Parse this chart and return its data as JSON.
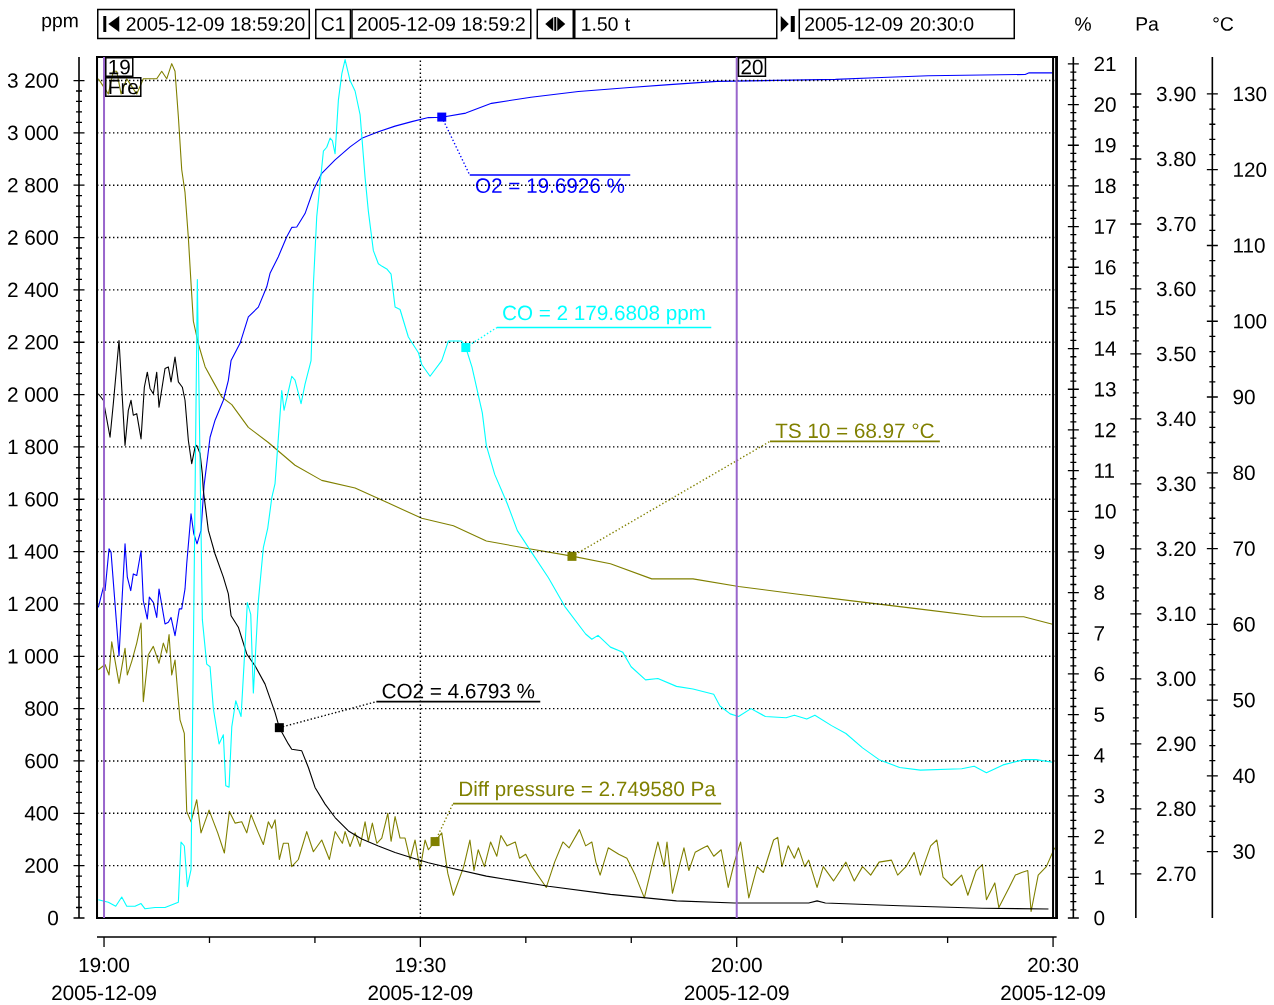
{
  "chart_data": [
    {
      "type": "line",
      "ylabel": "ppm",
      "xlim": [
        18.9889,
        20.5056
      ],
      "xticks": [
        {
          "value": 19,
          "label": "19:00"
        },
        {
          "value": 19.5,
          "label": "19:30"
        },
        {
          "value": 20,
          "label": "20:00"
        },
        {
          "value": 20.5,
          "label": "20:30"
        }
      ],
      "ylim": [
        0,
        3290
      ],
      "yticks": [
        0,
        200,
        400,
        600,
        800,
        {
          "value": 1000,
          "label": "1 000"
        },
        {
          "value": 1200,
          "label": "1 200"
        },
        {
          "value": 1400,
          "label": "1 400"
        },
        {
          "value": 1600,
          "label": "1 600"
        },
        {
          "value": 1800,
          "label": "1 800"
        },
        {
          "value": 2000,
          "label": "2 000"
        },
        {
          "value": 2200,
          "label": "2 200"
        },
        {
          "value": 2400,
          "label": "2 400"
        },
        {
          "value": 2600,
          "label": "2 600"
        },
        {
          "value": 2800,
          "label": "2 800"
        },
        {
          "value": 3000,
          "label": "3 000"
        },
        {
          "value": 3200,
          "label": "3 200"
        }
      ],
      "grid": true,
      "ref_lines": [
        {
          "axis": "x",
          "value": 19,
          "label": "19",
          "color": "#9966cc"
        },
        {
          "axis": "x",
          "value": 20,
          "label": "20",
          "color": "#9966cc"
        },
        {
          "axis": "x",
          "value": 20.5,
          "color": "#000000"
        }
      ],
      "annotations": [
        "2005-12-09 18:59:20",
        "C1",
        "2005-12-09 18:59:2",
        "1.50 t",
        "2005-12-09 20:30:0",
        "2005-12-09",
        "2005-12-09",
        "2005-12-09",
        "2005-12-09",
        "Fre",
        {
          "text": "CO = 2 179.6808 ppm",
          "x": 19.5718,
          "y": 2179.6808
        }
      ],
      "series": [
        {
          "color": "#00ffff",
          "x": [
            18.991,
            18.9989,
            19.0068,
            19.0185,
            19.028,
            19.0359,
            19.049,
            19.0585,
            19.0648,
            19.0806,
            19.0964,
            19.1175,
            19.1217,
            19.1269,
            19.1317,
            19.1375,
            19.1475,
            19.1554,
            19.1623,
            19.1676,
            19.1728,
            19.1818,
            19.1886,
            19.1924,
            19.1976,
            19.2019,
            19.2082,
            19.2166,
            19.2213,
            19.2265,
            19.2319,
            19.236,
            19.2439,
            19.2518,
            19.2588,
            19.2651,
            19.2703,
            19.2809,
            19.2845,
            19.2967,
            19.3019,
            19.3114,
            19.3177,
            19.3272,
            19.3309,
            19.3362,
            19.3467,
            19.352,
            19.3573,
            19.3609,
            19.3652,
            19.3704,
            19.3758,
            19.381,
            19.3889,
            19.3968,
            19.4047,
            19.4126,
            19.4178,
            19.4257,
            19.4336,
            19.4395,
            19.4469,
            19.4537,
            19.46,
            19.4679,
            19.481,
            19.4969,
            19.5022,
            19.5153,
            19.5338,
            19.5443,
            19.5549,
            19.5651,
            19.5718,
            19.5816,
            19.5979,
            19.6043,
            19.6175,
            19.6371,
            19.6533,
            19.6763,
            19.7024,
            19.7284,
            19.7612,
            19.771,
            19.7808,
            19.8004,
            19.82,
            19.8331,
            19.8559,
            19.8754,
            19.9048,
            19.9309,
            19.9636,
            19.9735,
            19.9897,
            20.0029,
            20.0225,
            20.0452,
            20.078,
            20.0911,
            20.1107,
            20.1236,
            20.1499,
            20.1726,
            20.1989,
            20.225,
            20.2575,
            20.2903,
            20.3556,
            20.3753,
            20.3947,
            20.421,
            20.4536,
            20.4731,
            20.4992
          ],
          "values": [
            70,
            65,
            60,
            45,
            80,
            45,
            45,
            55,
            35,
            40,
            40,
            60,
            290,
            275,
            120,
            185,
            2440,
            1140,
            970,
            960,
            800,
            665,
            700,
            505,
            500,
            730,
            830,
            770,
            970,
            1205,
            1160,
            860,
            1210,
            1415,
            1490,
            1605,
            1660,
            2015,
            1940,
            2070,
            2055,
            1965,
            2040,
            2130,
            2420,
            2680,
            2930,
            2945,
            2980,
            2970,
            2920,
            3125,
            3225,
            3280,
            3200,
            3160,
            3070,
            2830,
            2700,
            2550,
            2500,
            2490,
            2480,
            2460,
            2335,
            2325,
            2220,
            2160,
            2115,
            2070,
            2130,
            2205,
            2205,
            2205,
            2180,
            2105,
            1930,
            1805,
            1695,
            1585,
            1480,
            1395,
            1300,
            1190,
            1085,
            1065,
            1080,
            1035,
            1015,
            960,
            910,
            915,
            885,
            875,
            855,
            810,
            780,
            770,
            800,
            770,
            765,
            775,
            760,
            775,
            735,
            705,
            650,
            605,
            575,
            565,
            570,
            580,
            555,
            585,
            605,
            605,
            595
          ]
        }
      ]
    },
    {
      "type": "line",
      "ylabel": "%",
      "xlim": [
        18.9889,
        20.5056
      ],
      "ylim": [
        0,
        21.17
      ],
      "yticks": [
        0,
        1,
        2,
        3,
        4,
        5,
        6,
        7,
        8,
        9,
        10,
        11,
        12,
        13,
        14,
        15,
        16,
        17,
        18,
        19,
        20,
        21
      ],
      "tick_labels": "y",
      "annotations": [
        {
          "text": "O2 = 19.6926 %",
          "x": 19.5338,
          "y": 19.6926
        },
        {
          "text": "CO2 = 4.6793 %",
          "x": 19.2771,
          "y": 4.6793
        }
      ],
      "series": [
        {
          "color": "#0000ff",
          "x": [
            18.991,
            18.9989,
            19.0016,
            19.0079,
            19.0111,
            19.0237,
            19.0332,
            19.0368,
            19.0422,
            19.0463,
            19.0517,
            19.0585,
            19.0621,
            19.0684,
            19.0716,
            19.0779,
            19.0833,
            19.0869,
            19.0964,
            19.1016,
            19.1059,
            19.1122,
            19.119,
            19.1228,
            19.128,
            19.1307,
            19.1375,
            19.1418,
            19.147,
            19.1533,
            19.1581,
            19.1676,
            19.1755,
            19.1886,
            19.1965,
            19.2008,
            19.215,
            19.2281,
            19.2439,
            19.2572,
            19.2624,
            19.2755,
            19.2888,
            19.2967,
            19.3046,
            19.3177,
            19.3309,
            19.3441,
            19.3652,
            19.3889,
            19.4074,
            19.4336,
            19.46,
            19.4864,
            19.5127,
            19.5338,
            19.5718,
            19.6124,
            19.6748,
            19.7498,
            19.831,
            19.8935,
            19.9686,
            20.156,
            20.2185,
            20.3027,
            20.4559,
            20.4622,
            20.4996
          ],
          "values": [
            7.64,
            8.13,
            8.05,
            9.08,
            8.99,
            6.45,
            9.2,
            8.38,
            8.05,
            8.46,
            8.42,
            9.03,
            7.8,
            7.35,
            7.89,
            7.76,
            7.39,
            8.09,
            7.23,
            7.27,
            7.39,
            6.94,
            7.6,
            7.6,
            8.09,
            8.71,
            9.94,
            9.45,
            9.2,
            9.53,
            10.63,
            11.82,
            12.24,
            12.73,
            13.22,
            13.71,
            14.13,
            14.78,
            15.02,
            15.52,
            15.85,
            16.26,
            16.75,
            16.98,
            16.99,
            17.32,
            17.9,
            18.31,
            18.64,
            18.96,
            19.17,
            19.33,
            19.47,
            19.58,
            19.68,
            19.69,
            19.79,
            20.03,
            20.18,
            20.32,
            20.42,
            20.49,
            20.57,
            20.62,
            20.66,
            20.71,
            20.74,
            20.78,
            20.78
          ]
        },
        {
          "color": "#000000",
          "x": [
            18.991,
            18.9989,
            19.0095,
            19.0147,
            19.0237,
            19.0332,
            19.0384,
            19.0427,
            19.0463,
            19.0517,
            19.0585,
            19.0637,
            19.0684,
            19.0727,
            19.0779,
            19.0833,
            19.0869,
            19.0964,
            19.1016,
            19.1059,
            19.1122,
            19.1175,
            19.1238,
            19.128,
            19.1333,
            19.1386,
            19.1439,
            19.1465,
            19.1518,
            19.1554,
            19.157,
            19.1649,
            19.1755,
            19.1886,
            19.1965,
            19.2008,
            19.2123,
            19.2256,
            19.2387,
            19.2545,
            19.2703,
            19.2771,
            19.2913,
            19.2967,
            19.3125,
            19.323,
            19.3335,
            19.3494,
            19.3652,
            19.3862,
            19.4074,
            19.4336,
            19.46,
            19.4864,
            19.5127,
            19.5391,
            19.6043,
            19.7024,
            19.8004,
            19.9048,
            19.9964,
            20.1138,
            20.127,
            20.1401,
            20.2575,
            20.3883,
            20.4927
          ],
          "values": [
            12.89,
            12.73,
            11.82,
            12.65,
            14.2,
            11.62,
            12.48,
            12.73,
            12.36,
            12.4,
            11.78,
            13.05,
            13.42,
            13.02,
            12.89,
            13.42,
            12.56,
            13.51,
            13.55,
            13.18,
            13.79,
            13.18,
            13.05,
            12.73,
            11.74,
            11.17,
            11.58,
            11.62,
            11.42,
            10.92,
            10.51,
            9.53,
            8.95,
            8.38,
            7.97,
            7.43,
            7.15,
            6.49,
            6.2,
            5.75,
            5.05,
            4.68,
            4.28,
            4.15,
            4.11,
            3.7,
            3.21,
            2.8,
            2.47,
            2.14,
            1.94,
            1.77,
            1.61,
            1.48,
            1.36,
            1.26,
            1.03,
            0.78,
            0.58,
            0.42,
            0.37,
            0.37,
            0.42,
            0.37,
            0.3,
            0.24,
            0.22
          ]
        }
      ]
    },
    {
      "type": "line",
      "ylabel": "Pa",
      "xlim": [
        18.9889,
        20.5056
      ],
      "ylim": [
        2.632,
        3.957
      ],
      "yticks": [
        {
          "value": 2.7,
          "label": "2.70"
        },
        {
          "value": 2.8,
          "label": "2.80"
        },
        {
          "value": 2.9,
          "label": "2.90"
        },
        {
          "value": 3.0,
          "label": "3.00"
        },
        {
          "value": 3.1,
          "label": "3.10"
        },
        {
          "value": 3.2,
          "label": "3.20"
        },
        {
          "value": 3.3,
          "label": "3.30"
        },
        {
          "value": 3.4,
          "label": "3.40"
        },
        {
          "value": 3.5,
          "label": "3.50"
        },
        {
          "value": 3.6,
          "label": "3.60"
        },
        {
          "value": 3.7,
          "label": "3.70"
        },
        {
          "value": 3.8,
          "label": "3.80"
        },
        {
          "value": 3.9,
          "label": "3.90"
        }
      ],
      "tick_labels": "y",
      "annotations": [
        {
          "text": "Diff pressure = 2.749580 Pa",
          "x": 19.5232,
          "y": 2.74958
        }
      ],
      "series": [
        {
          "color": "#808000",
          "x": [
            18.991,
            19.0016,
            19.0079,
            19.0122,
            19.0237,
            19.0332,
            19.0368,
            19.0438,
            19.0517,
            19.0585,
            19.0621,
            19.07,
            19.0779,
            19.0869,
            19.0937,
            19.0991,
            19.1028,
            19.107,
            19.1122,
            19.1201,
            19.1269,
            19.1307,
            19.1375,
            19.1465,
            19.1533,
            19.166,
            19.1797,
            19.1902,
            19.1981,
            19.2071,
            19.2177,
            19.2256,
            19.2324,
            19.2439,
            19.2518,
            19.2597,
            19.2651,
            19.2703,
            19.2771,
            19.2834,
            19.2913,
            19.2967,
            19.3071,
            19.3204,
            19.3309,
            19.3441,
            19.3562,
            19.3652,
            19.3767,
            19.381,
            19.3889,
            19.3968,
            19.4047,
            19.4126,
            19.4178,
            19.4241,
            19.4311,
            19.439,
            19.4485,
            19.4537,
            19.46,
            19.4679,
            19.4758,
            19.4837,
            19.4916,
            19.4995,
            19.5074,
            19.5127,
            19.5232,
            19.5338,
            19.5433,
            19.5522,
            19.5685,
            19.5783,
            19.5847,
            19.5914,
            19.6012,
            19.611,
            19.6208,
            19.6273,
            19.6371,
            19.65,
            19.6567,
            19.6665,
            19.6763,
            19.699,
            19.7122,
            19.7253,
            19.7351,
            19.7514,
            19.7612,
            19.771,
            19.7774,
            19.7841,
            19.797,
            19.8135,
            19.8264,
            19.8396,
            19.854,
            19.8657,
            19.8754,
            19.8852,
            19.8898,
            19.8984,
            19.9166,
            19.9244,
            19.9343,
            19.9474,
            19.9539,
            19.9637,
            19.9754,
            19.9866,
            19.9964,
            20.0062,
            20.0191,
            20.0323,
            20.0421,
            20.0583,
            20.0648,
            20.0715,
            20.0813,
            20.0911,
            20.0976,
            20.1074,
            20.1138,
            20.127,
            20.1368,
            20.153,
            20.1726,
            20.1858,
            20.1989,
            20.2118,
            20.225,
            20.2446,
            20.2544,
            20.2675,
            20.2805,
            20.2903,
            20.3065,
            20.3163,
            20.3261,
            20.3393,
            20.3555,
            20.3653,
            20.3785,
            20.3883,
            20.3947,
            20.4079,
            20.4143,
            20.4306,
            20.4404,
            20.4504,
            20.46,
            20.4653,
            20.4765,
            20.4894,
            20.5025
          ],
          "values": [
            3.014,
            3.022,
            3.006,
            3.057,
            2.993,
            3.047,
            3.006,
            3.027,
            3.055,
            3.086,
            2.965,
            3.037,
            3.05,
            3.024,
            3.055,
            3.04,
            3.068,
            3.006,
            3.029,
            2.937,
            2.916,
            2.796,
            2.78,
            2.814,
            2.763,
            2.798,
            2.763,
            2.732,
            2.796,
            2.778,
            2.78,
            2.763,
            2.791,
            2.763,
            2.745,
            2.78,
            2.77,
            2.783,
            2.722,
            2.747,
            2.747,
            2.711,
            2.722,
            2.765,
            2.734,
            2.752,
            2.722,
            2.765,
            2.747,
            2.765,
            2.742,
            2.763,
            2.742,
            2.78,
            2.75,
            2.778,
            2.747,
            2.755,
            2.793,
            2.75,
            2.788,
            2.755,
            2.755,
            2.722,
            2.752,
            2.706,
            2.752,
            2.737,
            2.75,
            2.763,
            2.701,
            2.667,
            2.711,
            2.752,
            2.705,
            2.737,
            2.711,
            2.749,
            2.727,
            2.759,
            2.743,
            2.749,
            2.724,
            2.73,
            2.711,
            2.679,
            2.718,
            2.749,
            2.74,
            2.768,
            2.743,
            2.749,
            2.718,
            2.698,
            2.74,
            2.73,
            2.724,
            2.698,
            2.663,
            2.711,
            2.749,
            2.711,
            2.749,
            2.67,
            2.74,
            2.705,
            2.733,
            2.74,
            2.743,
            2.727,
            2.737,
            2.679,
            2.718,
            2.749,
            2.663,
            2.711,
            2.702,
            2.752,
            2.756,
            2.711,
            2.743,
            2.724,
            2.74,
            2.711,
            2.721,
            2.679,
            2.711,
            2.689,
            2.718,
            2.689,
            2.711,
            2.698,
            2.718,
            2.721,
            2.698,
            2.711,
            2.733,
            2.698,
            2.743,
            2.752,
            2.695,
            2.682,
            2.698,
            2.667,
            2.705,
            2.714,
            2.66,
            2.686,
            2.648,
            2.679,
            2.698,
            2.702,
            2.705,
            2.642,
            2.698,
            2.711,
            2.74
          ]
        }
      ]
    },
    {
      "type": "line",
      "ylabel": "°C",
      "xlim": [
        18.9889,
        20.5056
      ],
      "ylim": [
        21.24,
        134.88
      ],
      "yticks": [
        30,
        40,
        50,
        60,
        70,
        80,
        90,
        100,
        110,
        120,
        130
      ],
      "tick_labels": "y",
      "annotations": [
        {
          "text": "TS 10 = 68.97 °C",
          "x": 19.7396,
          "y": 68.97
        }
      ],
      "series": [
        {
          "color": "#808000",
          "x": [
            18.991,
            18.9989,
            19.0068,
            19.0147,
            19.0201,
            19.0269,
            19.0359,
            19.0438,
            19.0517,
            19.0621,
            19.0727,
            19.0833,
            19.0912,
            19.0991,
            19.107,
            19.1122,
            19.1175,
            19.1228,
            19.128,
            19.1333,
            19.1375,
            19.1412,
            19.1491,
            19.1597,
            19.1728,
            19.1861,
            19.2019,
            19.2281,
            19.2597,
            19.3019,
            19.3441,
            19.3968,
            19.4494,
            19.5022,
            19.5522,
            19.6043,
            19.6696,
            19.7396,
            19.8004,
            19.8657,
            19.9309,
            20.0029,
            20.0942,
            20.1922,
            20.2903,
            20.3883,
            20.4536,
            20.4992
          ],
          "values": [
            132,
            131,
            130,
            133,
            133,
            130,
            132,
            131,
            130,
            132,
            132,
            132,
            133,
            132,
            134,
            133,
            127,
            120,
            117,
            111,
            105,
            100,
            97,
            94,
            92,
            90,
            89,
            86,
            84,
            81,
            79,
            78,
            76,
            74,
            73,
            71,
            70,
            69,
            68,
            66,
            66,
            65,
            64,
            63,
            62,
            61,
            61,
            60
          ]
        }
      ]
    }
  ]
}
